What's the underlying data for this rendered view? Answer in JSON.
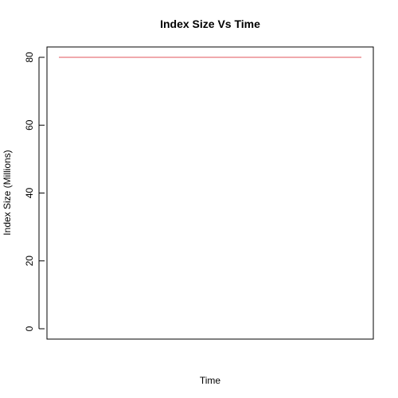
{
  "chart_data": {
    "type": "line",
    "title": "Index Size Vs Time",
    "xlabel": "Time",
    "ylabel": "Index Size (Millions)",
    "ylim": [
      0,
      80
    ],
    "yticks": [
      0,
      20,
      40,
      60,
      80
    ],
    "x_tick_labels_shown": false,
    "grid": false,
    "series": [
      {
        "color": "#e0535b",
        "x": [
          0,
          1
        ],
        "values": [
          80,
          80
        ]
      }
    ]
  }
}
